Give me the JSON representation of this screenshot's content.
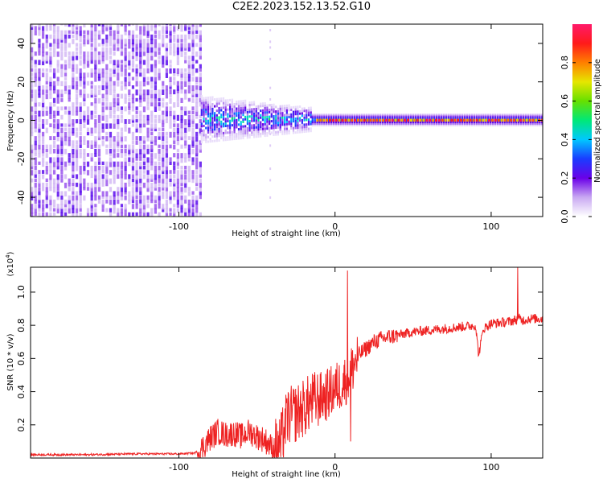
{
  "title": "C2E2.2023.152.13.52.G10",
  "chart_data": [
    {
      "type": "heatmap",
      "xlabel": "Height of straight line (km)",
      "ylabel": "Frequency (Hz)",
      "xlim": [
        -195,
        133
      ],
      "ylim": [
        -50,
        50
      ],
      "x_ticks": [
        -100,
        0,
        100
      ],
      "x_tick_labels": [
        "-100",
        "0",
        "100"
      ],
      "y_ticks": [
        -40,
        -20,
        0,
        20,
        40
      ],
      "y_tick_labels": [
        "-40",
        "-20",
        "0",
        "20",
        "40"
      ],
      "colorbar": {
        "label": "Normalized spectral amplitude",
        "range": [
          0,
          1
        ],
        "ticks": [
          0,
          0.2,
          0.4,
          0.6,
          0.8
        ],
        "tick_labels": [
          "0.0",
          "0.2",
          "0.4",
          "0.6",
          "0.8"
        ],
        "colors": [
          "#ffffff",
          "#c9a9f2",
          "#6a00e8",
          "#1a3cff",
          "#00c8ff",
          "#00e878",
          "#66e000",
          "#e6e600",
          "#ff7f00",
          "#ff1a1a",
          "#ff1a6a"
        ]
      },
      "regions": [
        {
          "x_range": [
            -195,
            -86
          ],
          "freq_range": [
            -50,
            50
          ],
          "amplitude": 0.12
        },
        {
          "x_range": [
            -86,
            -15
          ],
          "freq_range": [
            -12,
            12
          ],
          "amplitude": 0.3
        },
        {
          "x_range": [
            -15,
            133
          ],
          "freq_range": [
            -3,
            3
          ],
          "amplitude": 0.35
        },
        {
          "x_range": [
            -12,
            133
          ],
          "freq_range": [
            -0.8,
            0.8
          ],
          "amplitude": 0.9
        }
      ],
      "grid": false
    },
    {
      "type": "line",
      "xlabel": "Height of straight line (km)",
      "ylabel": "SNR (10 * v/v)",
      "y_multiplier": "(x10^4)",
      "xlim": [
        -195,
        133
      ],
      "ylim": [
        0,
        1.15
      ],
      "x_ticks": [
        -100,
        0,
        100
      ],
      "x_tick_labels": [
        "-100",
        "0",
        "100"
      ],
      "y_ticks": [
        0.2,
        0.4,
        0.6,
        0.8,
        1.0
      ],
      "y_tick_labels": [
        "0.2",
        "0.4",
        "0.6",
        "0.8",
        "1.0"
      ],
      "series": [
        {
          "color": "#ee2222",
          "x": [
            -195,
            -160,
            -130,
            -100,
            -90,
            -86,
            -80,
            -75,
            -70,
            -65,
            -60,
            -55,
            -50,
            -45,
            -40,
            -35,
            -32,
            -30,
            -25,
            -20,
            -15,
            -10,
            -5,
            0,
            5,
            10,
            12,
            15,
            20,
            25,
            30,
            40,
            50,
            60,
            70,
            80,
            90,
            92,
            95,
            100,
            110,
            115,
            118,
            120,
            125,
            133
          ],
          "y": [
            0.02,
            0.02,
            0.025,
            0.025,
            0.03,
            0.05,
            0.12,
            0.16,
            0.14,
            0.15,
            0.13,
            0.16,
            0.13,
            0.11,
            0.06,
            0.08,
            0.2,
            0.25,
            0.27,
            0.3,
            0.34,
            0.36,
            0.38,
            0.42,
            0.45,
            0.52,
            0.56,
            0.62,
            0.66,
            0.7,
            0.72,
            0.74,
            0.76,
            0.77,
            0.78,
            0.79,
            0.8,
            0.62,
            0.78,
            0.81,
            0.82,
            0.83,
            0.84,
            0.83,
            0.84,
            0.84
          ]
        }
      ],
      "spikes": [
        {
          "x": 8,
          "y": 1.13
        },
        {
          "x": 10,
          "y": 0.1
        },
        {
          "x": 117,
          "y": 1.15
        }
      ],
      "grid": false
    }
  ]
}
